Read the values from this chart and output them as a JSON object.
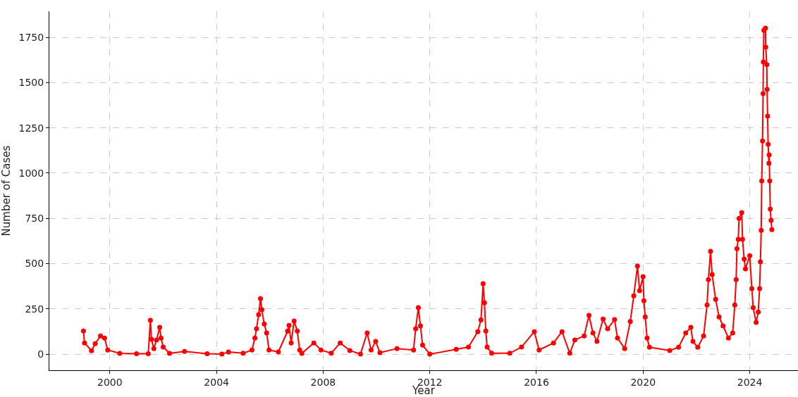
{
  "chart_data": {
    "type": "line",
    "xlabel": "Year",
    "ylabel": "Number of Cases",
    "x": [
      1999.01,
      1999.05,
      1999.31,
      1999.45,
      1999.65,
      1999.8,
      1999.92,
      2000.37,
      2001.0,
      2001.44,
      2001.52,
      2001.56,
      2001.65,
      2001.75,
      2001.87,
      2001.92,
      2002.0,
      2002.24,
      2002.8,
      2003.65,
      2004.2,
      2004.45,
      2005.0,
      2005.33,
      2005.44,
      2005.5,
      2005.58,
      2005.65,
      2005.7,
      2005.79,
      2005.88,
      2005.97,
      2006.32,
      2006.67,
      2006.72,
      2006.8,
      2006.91,
      2007.03,
      2007.12,
      2007.2,
      2007.65,
      2007.92,
      2008.3,
      2008.64,
      2009.0,
      2009.4,
      2009.65,
      2009.8,
      2009.97,
      2010.13,
      2010.77,
      2011.39,
      2011.47,
      2011.57,
      2011.65,
      2011.73,
      2012.0,
      2012.99,
      2013.45,
      2013.8,
      2013.92,
      2014.0,
      2014.05,
      2014.1,
      2014.15,
      2014.32,
      2015.0,
      2015.44,
      2015.92,
      2016.1,
      2016.64,
      2016.96,
      2017.25,
      2017.44,
      2017.79,
      2017.97,
      2018.12,
      2018.27,
      2018.5,
      2018.67,
      2018.93,
      2019.04,
      2019.31,
      2019.52,
      2019.65,
      2019.79,
      2019.87,
      2020.0,
      2020.03,
      2020.08,
      2020.15,
      2020.24,
      2021.0,
      2021.33,
      2021.6,
      2021.79,
      2021.87,
      2022.05,
      2022.27,
      2022.4,
      2022.45,
      2022.53,
      2022.59,
      2022.72,
      2022.85,
      2023.0,
      2023.2,
      2023.36,
      2023.44,
      2023.49,
      2023.52,
      2023.57,
      2023.6,
      2023.7,
      2023.73,
      2023.79,
      2023.84,
      2024.0,
      2024.08,
      2024.13,
      2024.24,
      2024.32,
      2024.37,
      2024.4,
      2024.43,
      2024.45,
      2024.48,
      2024.5,
      2024.51,
      2024.53,
      2024.59,
      2024.6,
      2024.64,
      2024.65,
      2024.67,
      2024.69,
      2024.72,
      2024.73,
      2024.75,
      2024.77,
      2024.8,
      2024.83
    ],
    "series": [
      {
        "color": "#ff0000",
        "values": [
          128,
          62,
          19,
          58,
          101,
          89,
          23,
          4,
          2,
          2,
          187,
          82,
          31,
          78,
          148,
          89,
          39,
          4,
          15,
          2,
          0,
          12,
          5,
          23,
          89,
          140,
          218,
          307,
          245,
          167,
          117,
          23,
          12,
          128,
          159,
          62,
          183,
          128,
          23,
          4,
          62,
          23,
          5,
          62,
          20,
          0,
          117,
          23,
          70,
          8,
          31,
          23,
          140,
          257,
          156,
          50,
          0,
          27,
          39,
          124,
          189,
          389,
          284,
          128,
          39,
          5,
          5,
          39,
          124,
          23,
          62,
          124,
          5,
          78,
          101,
          214,
          117,
          70,
          194,
          140,
          191,
          89,
          31,
          180,
          322,
          486,
          350,
          428,
          295,
          206,
          89,
          38,
          20,
          38,
          117,
          148,
          70,
          38,
          101,
          272,
          412,
          568,
          440,
          303,
          206,
          156,
          89,
          117,
          272,
          412,
          583,
          634,
          750,
          782,
          634,
          525,
          471,
          544,
          362,
          257,
          175,
          233,
          362,
          510,
          684,
          957,
          1178,
          1439,
          1614,
          1789,
          1801,
          1696,
          1599,
          1462,
          1315,
          1159,
          1054,
          1101,
          957,
          801,
          739,
          688
        ]
      }
    ],
    "xlim": [
      1997.73,
      2025.81
    ],
    "ylim": [
      -89,
      1894
    ],
    "xticks": [
      2000,
      2004,
      2008,
      2012,
      2016,
      2020,
      2024
    ],
    "yticks": [
      0,
      250,
      500,
      750,
      1000,
      1250,
      1500,
      1750
    ],
    "grid": true,
    "marker": "circle",
    "line_style": "solid"
  }
}
